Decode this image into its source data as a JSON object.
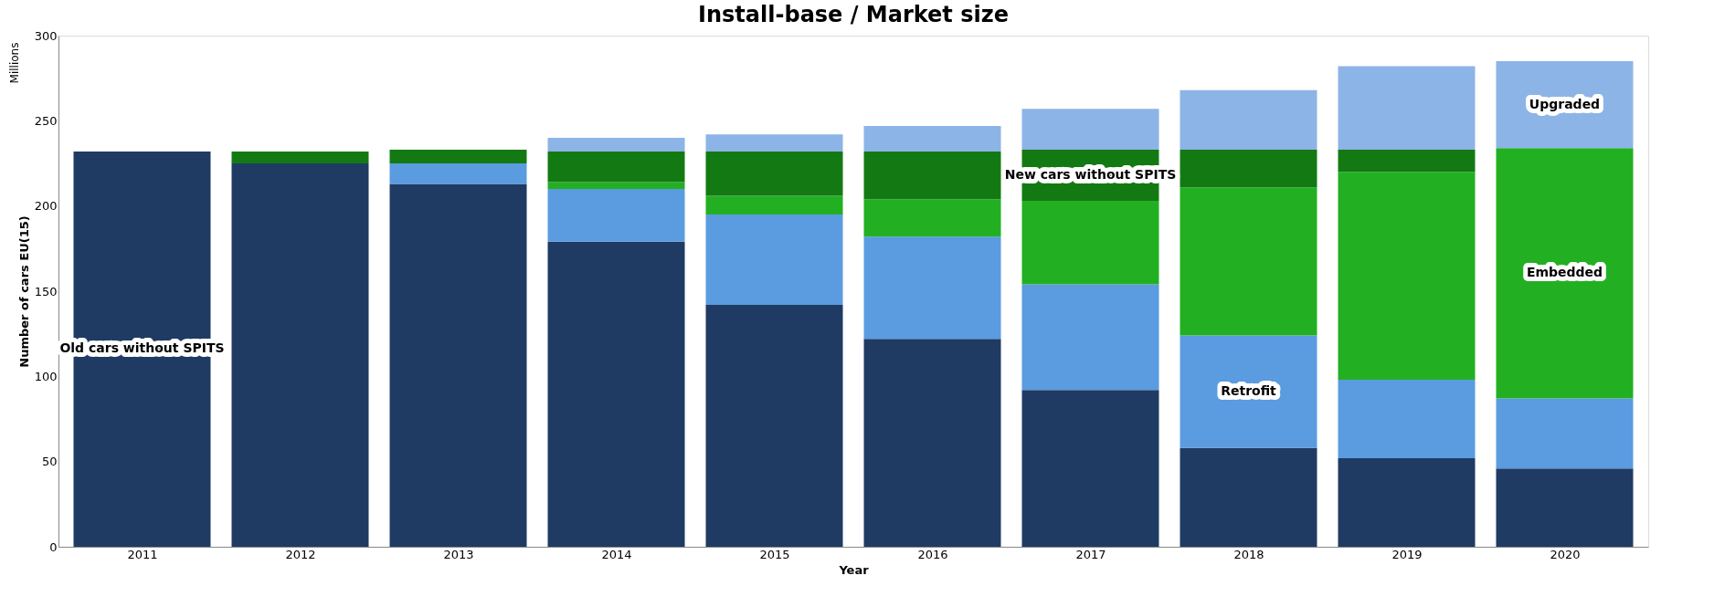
{
  "chart_data": {
    "type": "bar",
    "title": "Install-base / Market size",
    "xlabel": "Year",
    "ylabel": "Number of cars EU(15)",
    "categories": [
      "2011",
      "2012",
      "2013",
      "2014",
      "2015",
      "2016",
      "2017",
      "2018",
      "2019",
      "2020"
    ],
    "stacked": true,
    "series": [
      {
        "name": "Old cars without SPITS",
        "color": "#1f3b63",
        "values": [
          232,
          225,
          213,
          179,
          142,
          122,
          92,
          58,
          52,
          46
        ]
      },
      {
        "name": "Retrofit",
        "color": "#5b9be0",
        "values": [
          0,
          0,
          12,
          31,
          53,
          60,
          62,
          66,
          46,
          41
        ]
      },
      {
        "name": "Embedded",
        "color": "#22b022",
        "values": [
          0,
          0,
          0,
          4,
          11,
          22,
          49,
          87,
          122,
          147
        ]
      },
      {
        "name": "New cars without SPITS",
        "color": "#137a13",
        "values": [
          0,
          7,
          8,
          18,
          26,
          28,
          30,
          22,
          13,
          0
        ]
      },
      {
        "name": "Upgraded",
        "color": "#8db4e6",
        "values": [
          0,
          0,
          0,
          8,
          10,
          15,
          24,
          35,
          49,
          51
        ]
      }
    ],
    "ylim": [
      0,
      300
    ],
    "yticks": [
      0,
      50,
      100,
      150,
      200,
      250,
      300
    ],
    "grid": false,
    "legend": false,
    "annotations": [
      "Millions"
    ]
  }
}
